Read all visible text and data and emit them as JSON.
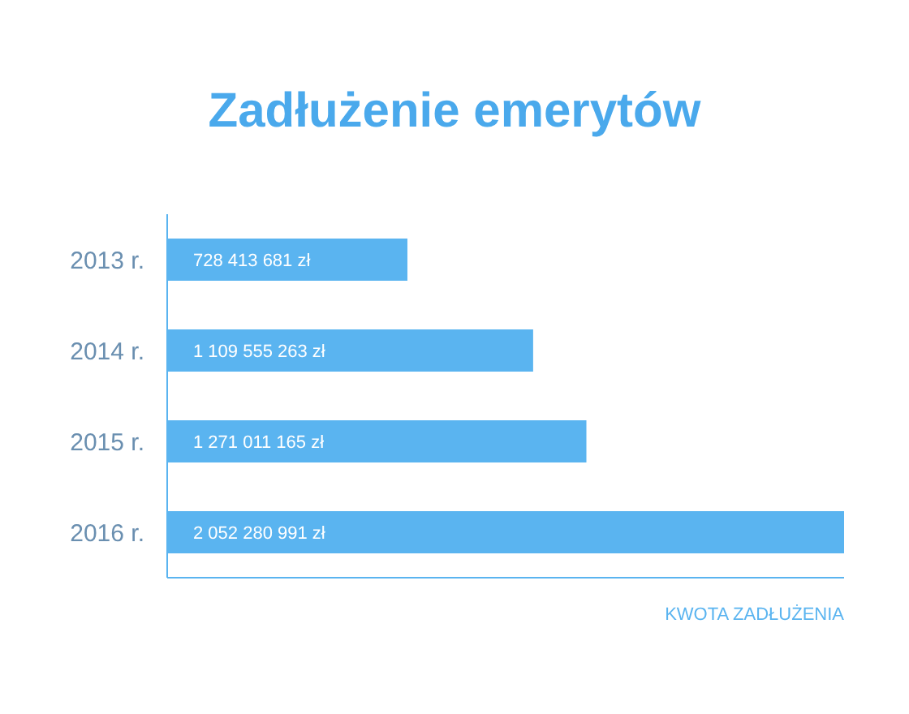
{
  "chart_data": {
    "type": "bar",
    "orientation": "horizontal",
    "title": "Zadłużenie emerytów",
    "xlabel": "KWOTA ZADŁUŻENIA",
    "categories": [
      "2013 r.",
      "2014 r.",
      "2015 r.",
      "2016 r."
    ],
    "series": [
      {
        "color": "#5ab4f0",
        "values": [
          728413681,
          1109555263,
          1271011165,
          2052280991
        ],
        "value_labels": [
          "728 413 681 zł",
          "1 109 555 263 zł",
          "1 271 011 165 zł",
          "2 052 280 991 zł"
        ]
      }
    ],
    "tick_labels": "y",
    "grid": false,
    "legend": false
  }
}
